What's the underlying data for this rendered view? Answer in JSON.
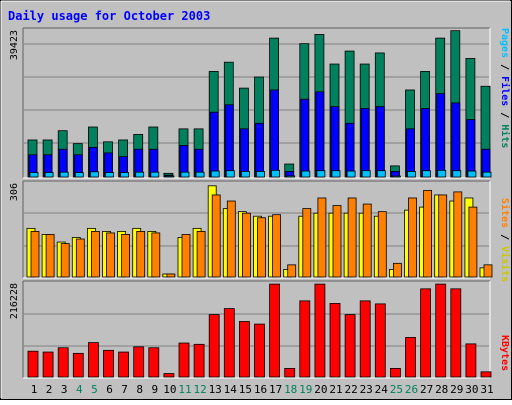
{
  "chart_data": [
    {
      "type": "bar",
      "title": "Daily usage for October 2003",
      "y_max_label": "39423",
      "ylim": [
        0,
        39423
      ],
      "right_label": {
        "pages": "Pages",
        "sep1": " / ",
        "files": "Files",
        "sep2": " / ",
        "hits": "Hits"
      },
      "series": [
        {
          "name": "Hits",
          "color": "#00805C",
          "values": [
            10000,
            10000,
            12500,
            9000,
            13500,
            9500,
            10000,
            11500,
            13500,
            1000,
            13000,
            13000,
            28500,
            31000,
            24000,
            27000,
            37500,
            3500,
            36000,
            38500,
            30500,
            34000,
            30500,
            33500,
            3000,
            23500,
            28500,
            37500,
            39500,
            32000,
            24500
          ]
        },
        {
          "name": "Files",
          "color": "#0000FF",
          "values": [
            6000,
            6000,
            7500,
            6000,
            8000,
            6500,
            5500,
            7500,
            7500,
            500,
            8500,
            7500,
            17500,
            19500,
            13000,
            14500,
            23500,
            1500,
            21000,
            23000,
            19000,
            14500,
            18500,
            19000,
            1500,
            13000,
            18500,
            22500,
            20000,
            15500,
            7500
          ]
        },
        {
          "name": "Pages",
          "color": "#00C0FF",
          "values": [
            1200,
            1200,
            1300,
            1200,
            1400,
            1200,
            1200,
            1300,
            1300,
            200,
            1300,
            1300,
            1600,
            1700,
            1500,
            1500,
            1800,
            300,
            1600,
            1700,
            1700,
            1600,
            1700,
            1700,
            200,
            1500,
            1700,
            1800,
            1700,
            1600,
            1300
          ]
        }
      ]
    },
    {
      "type": "bar",
      "y_max_label": "306",
      "ylim": [
        0,
        306
      ],
      "right_label": {
        "sites": "Sites",
        "sep": " / ",
        "visits": "Visits"
      },
      "series": [
        {
          "name": "Sites",
          "color": "#FFFF00",
          "values": [
            160,
            140,
            115,
            130,
            160,
            150,
            150,
            160,
            150,
            10,
            130,
            160,
            300,
            225,
            215,
            200,
            200,
            25,
            200,
            210,
            210,
            210,
            210,
            200,
            25,
            220,
            230,
            270,
            250,
            260,
            30
          ]
        },
        {
          "name": "Visits",
          "color": "#FF8000",
          "values": [
            150,
            140,
            110,
            125,
            150,
            145,
            140,
            150,
            145,
            10,
            140,
            150,
            270,
            250,
            210,
            195,
            205,
            40,
            225,
            260,
            235,
            260,
            240,
            215,
            45,
            260,
            285,
            270,
            280,
            230,
            40
          ]
        }
      ]
    },
    {
      "type": "bar",
      "y_max_label": "216228",
      "ylim": [
        0,
        216228
      ],
      "right_label": {
        "kbytes": "KBytes"
      },
      "series": [
        {
          "name": "KBytes",
          "color": "#FF0000",
          "values": [
            60000,
            58000,
            68000,
            55000,
            80000,
            62000,
            58000,
            70000,
            68000,
            8000,
            79000,
            76000,
            145000,
            159000,
            129000,
            123000,
            216000,
            20000,
            177000,
            216000,
            171000,
            145000,
            177000,
            170000,
            20000,
            92000,
            205000,
            216000,
            205000,
            77000,
            12000
          ]
        }
      ]
    }
  ],
  "days": [
    "1",
    "2",
    "3",
    "4",
    "5",
    "6",
    "7",
    "8",
    "9",
    "10",
    "11",
    "12",
    "13",
    "14",
    "15",
    "16",
    "17",
    "18",
    "19",
    "20",
    "21",
    "22",
    "23",
    "24",
    "25",
    "26",
    "27",
    "28",
    "29",
    "30",
    "31"
  ],
  "weekend_days": [
    "4",
    "5",
    "11",
    "12",
    "18",
    "19",
    "25",
    "26"
  ],
  "colors": {
    "frame_bg": "#C0C0C0",
    "weekday_text": "#000000",
    "weekend_text": "#00805C",
    "title_text": "#0000FF",
    "grid": "#808080"
  }
}
